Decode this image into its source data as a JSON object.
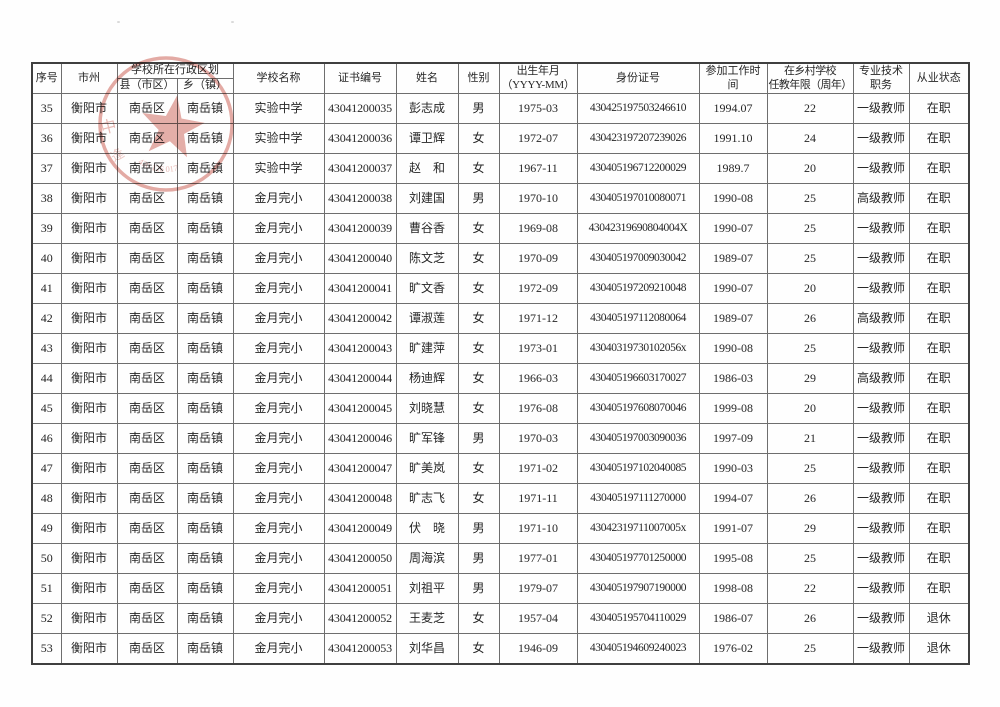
{
  "table": {
    "headers": {
      "index": "序号",
      "city": "市州",
      "admin_division": "学校所在行政区划",
      "county": "县（市区）",
      "town": "乡（镇）",
      "school": "学校名称",
      "cert_no": "证书编号",
      "name": "姓名",
      "gender": "性别",
      "birth": "出生年月\n（YYYY-MM）",
      "id_no": "身份证号",
      "work_start": "参加工作时\n间",
      "years": "在乡村学校\n任教年限（周年）",
      "title": "专业技术\n职务",
      "status": "从业状态"
    },
    "col_names": [
      "cell-index",
      "cell-city",
      "cell-county",
      "cell-town",
      "cell-school",
      "cell-cert-no",
      "cell-name",
      "cell-gender",
      "cell-birth",
      "cell-id-no",
      "cell-work-start",
      "cell-years",
      "cell-title",
      "cell-status"
    ],
    "rows": [
      [
        "35",
        "衡阳市",
        "南岳区",
        "南岳镇",
        "实验中学",
        "43041200035",
        "彭志成",
        "男",
        "1975-03",
        "430425197503246610",
        "1994.07",
        "22",
        "一级教师",
        "在职"
      ],
      [
        "36",
        "衡阳市",
        "南岳区",
        "南岳镇",
        "实验中学",
        "43041200036",
        "谭卫辉",
        "女",
        "1972-07",
        "430423197207239026",
        "1991.10",
        "24",
        "一级教师",
        "在职"
      ],
      [
        "37",
        "衡阳市",
        "南岳区",
        "南岳镇",
        "实验中学",
        "43041200037",
        "赵　和",
        "女",
        "1967-11",
        "430405196712200029",
        "1989.7",
        "20",
        "一级教师",
        "在职"
      ],
      [
        "38",
        "衡阳市",
        "南岳区",
        "南岳镇",
        "金月完小",
        "43041200038",
        "刘建国",
        "男",
        "1970-10",
        "430405197010080071",
        "1990-08",
        "25",
        "高级教师",
        "在职"
      ],
      [
        "39",
        "衡阳市",
        "南岳区",
        "南岳镇",
        "金月完小",
        "43041200039",
        "曹谷香",
        "女",
        "1969-08",
        "43042319690804004X",
        "1990-07",
        "25",
        "一级教师",
        "在职"
      ],
      [
        "40",
        "衡阳市",
        "南岳区",
        "南岳镇",
        "金月完小",
        "43041200040",
        "陈文芝",
        "女",
        "1970-09",
        "430405197009030042",
        "1989-07",
        "25",
        "一级教师",
        "在职"
      ],
      [
        "41",
        "衡阳市",
        "南岳区",
        "南岳镇",
        "金月完小",
        "43041200041",
        "旷文香",
        "女",
        "1972-09",
        "430405197209210048",
        "1990-07",
        "20",
        "一级教师",
        "在职"
      ],
      [
        "42",
        "衡阳市",
        "南岳区",
        "南岳镇",
        "金月完小",
        "43041200042",
        "谭淑莲",
        "女",
        "1971-12",
        "430405197112080064",
        "1989-07",
        "26",
        "高级教师",
        "在职"
      ],
      [
        "43",
        "衡阳市",
        "南岳区",
        "南岳镇",
        "金月完小",
        "43041200043",
        "旷建萍",
        "女",
        "1973-01",
        "43040319730102056x",
        "1990-08",
        "25",
        "一级教师",
        "在职"
      ],
      [
        "44",
        "衡阳市",
        "南岳区",
        "南岳镇",
        "金月完小",
        "43041200044",
        "杨迪辉",
        "女",
        "1966-03",
        "430405196603170027",
        "1986-03",
        "29",
        "高级教师",
        "在职"
      ],
      [
        "45",
        "衡阳市",
        "南岳区",
        "南岳镇",
        "金月完小",
        "43041200045",
        "刘晓慧",
        "女",
        "1976-08",
        "430405197608070046",
        "1999-08",
        "20",
        "一级教师",
        "在职"
      ],
      [
        "46",
        "衡阳市",
        "南岳区",
        "南岳镇",
        "金月完小",
        "43041200046",
        "旷军锋",
        "男",
        "1970-03",
        "430405197003090036",
        "1997-09",
        "21",
        "一级教师",
        "在职"
      ],
      [
        "47",
        "衡阳市",
        "南岳区",
        "南岳镇",
        "金月完小",
        "43041200047",
        "旷美岚",
        "女",
        "1971-02",
        "430405197102040085",
        "1990-03",
        "25",
        "一级教师",
        "在职"
      ],
      [
        "48",
        "衡阳市",
        "南岳区",
        "南岳镇",
        "金月完小",
        "43041200048",
        "旷志飞",
        "女",
        "1971-11",
        "430405197111270000",
        "1994-07",
        "26",
        "一级教师",
        "在职"
      ],
      [
        "49",
        "衡阳市",
        "南岳区",
        "南岳镇",
        "金月完小",
        "43041200049",
        "伏　晓",
        "男",
        "1971-10",
        "43042319711007005x",
        "1991-07",
        "29",
        "一级教师",
        "在职"
      ],
      [
        "50",
        "衡阳市",
        "南岳区",
        "南岳镇",
        "金月完小",
        "43041200050",
        "周海滨",
        "男",
        "1977-01",
        "430405197701250000",
        "1995-08",
        "25",
        "一级教师",
        "在职"
      ],
      [
        "51",
        "衡阳市",
        "南岳区",
        "南岳镇",
        "金月完小",
        "43041200051",
        "刘祖平",
        "男",
        "1979-07",
        "430405197907190000",
        "1998-08",
        "22",
        "一级教师",
        "在职"
      ],
      [
        "52",
        "衡阳市",
        "南岳区",
        "南岳镇",
        "金月完小",
        "43041200052",
        "王麦芝",
        "女",
        "1957-04",
        "430405195704110029",
        "1986-07",
        "26",
        "一级教师",
        "退休"
      ],
      [
        "53",
        "衡阳市",
        "南岳区",
        "南岳镇",
        "金月完小",
        "43041200053",
        "刘华昌",
        "女",
        "1946-09",
        "430405194609240023",
        "1976-02",
        "25",
        "一级教师",
        "退休"
      ]
    ]
  },
  "seal": {
    "color": "#c9574b",
    "star": "★",
    "arc_digits": "420 126 017",
    "fragment_left": "中",
    "fragment_lower_left": "逢"
  }
}
